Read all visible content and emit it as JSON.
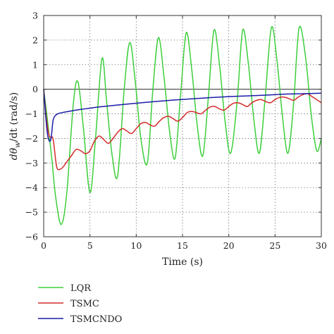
{
  "chart_data": {
    "type": "line",
    "xlabel": "Time (s)",
    "ylabel": "dθ",
    "ylabel_sub": "w",
    "ylabel_suffix": "/dt (rad/s)",
    "xlim": [
      0,
      30
    ],
    "ylim": [
      -6,
      3
    ],
    "xticks": [
      "0",
      "5",
      "10",
      "15",
      "20",
      "25",
      "30"
    ],
    "yticks": [
      "3",
      "2",
      "1",
      "0",
      "−1",
      "−2",
      "−3",
      "−4",
      "−5",
      "−6"
    ],
    "grid": true,
    "legend_position": "below",
    "series": [
      {
        "name": "LQR",
        "color": "#3ccf3c",
        "x": [
          0,
          0.3,
          0.6,
          0.9,
          1.3,
          1.9,
          2.5,
          3.2,
          3.7,
          4.3,
          5.0,
          5.6,
          6.3,
          6.8,
          7.4,
          8.0,
          8.7,
          9.3,
          9.9,
          10.5,
          11.2,
          11.8,
          12.4,
          13.0,
          13.6,
          14.2,
          14.8,
          15.4,
          16.0,
          16.6,
          17.2,
          17.8,
          18.4,
          19.0,
          19.6,
          20.2,
          20.9,
          21.5,
          22.1,
          22.7,
          23.3,
          23.9,
          24.6,
          25.2,
          25.8,
          26.4,
          27.0,
          27.6,
          28.3,
          28.9,
          29.5,
          30.0
        ],
        "y": [
          0,
          -0.9,
          -1.9,
          -2.9,
          -4.4,
          -5.5,
          -4.2,
          -0.6,
          0.3,
          -1.6,
          -4.2,
          -2.0,
          1.25,
          -0.5,
          -2.7,
          -3.5,
          0.0,
          1.9,
          0.3,
          -2.0,
          -3.0,
          0.0,
          2.1,
          0.5,
          -1.7,
          -2.8,
          -0.2,
          2.3,
          0.8,
          -1.5,
          -2.7,
          -0.3,
          2.4,
          1.0,
          -1.3,
          -2.6,
          -0.5,
          2.4,
          1.1,
          -1.2,
          -2.6,
          -0.5,
          2.5,
          1.2,
          -1.1,
          -2.6,
          -0.6,
          2.5,
          1.3,
          -1.0,
          -2.5,
          -2.0
        ]
      },
      {
        "name": "TSMC",
        "color": "#d42b2b",
        "x": [
          0,
          0.3,
          0.6,
          1.0,
          1.3,
          1.5,
          2.0,
          2.5,
          3.0,
          3.5,
          4.0,
          4.5,
          5.0,
          5.5,
          6.0,
          6.5,
          7.0,
          7.5,
          8.0,
          8.5,
          9.0,
          9.5,
          10.0,
          10.5,
          11.0,
          11.5,
          12.0,
          12.5,
          13.0,
          13.5,
          14.0,
          14.5,
          15.0,
          15.5,
          16.0,
          16.5,
          17.0,
          17.5,
          18.0,
          18.5,
          19.0,
          19.5,
          20.0,
          20.5,
          21.0,
          21.5,
          22.0,
          22.5,
          23.0,
          23.5,
          24.0,
          24.5,
          25.0,
          25.5,
          26.0,
          26.5,
          27.0,
          27.5,
          28.0,
          28.5,
          29.0,
          29.5,
          30.0
        ],
        "y": [
          0,
          -1.2,
          -1.9,
          -2.0,
          -2.9,
          -3.25,
          -3.2,
          -2.95,
          -2.7,
          -2.45,
          -2.5,
          -2.62,
          -2.5,
          -2.1,
          -1.9,
          -2.05,
          -2.2,
          -2.0,
          -1.75,
          -1.6,
          -1.7,
          -1.8,
          -1.6,
          -1.4,
          -1.35,
          -1.45,
          -1.5,
          -1.3,
          -1.15,
          -1.1,
          -1.2,
          -1.3,
          -1.15,
          -0.95,
          -0.9,
          -0.95,
          -1.0,
          -0.85,
          -0.72,
          -0.7,
          -0.8,
          -0.85,
          -0.7,
          -0.57,
          -0.55,
          -0.62,
          -0.7,
          -0.55,
          -0.45,
          -0.42,
          -0.5,
          -0.55,
          -0.42,
          -0.33,
          -0.32,
          -0.38,
          -0.45,
          -0.32,
          -0.22,
          -0.18,
          -0.3,
          -0.42,
          -0.55
        ]
      },
      {
        "name": "TSMCNDO",
        "color": "#1c1ca8",
        "x": [
          0,
          0.2,
          0.4,
          0.6,
          0.8,
          1.0,
          1.2,
          1.5,
          2.0,
          3.0,
          4.0,
          5.0,
          6.0,
          8.0,
          10.0,
          12.0,
          14.0,
          16.0,
          18.0,
          20.0,
          22.0,
          24.0,
          26.0,
          28.0,
          30.0
        ],
        "y": [
          0,
          -1.0,
          -1.8,
          -2.1,
          -2.0,
          -1.3,
          -1.1,
          -1.0,
          -0.95,
          -0.88,
          -0.82,
          -0.77,
          -0.72,
          -0.64,
          -0.57,
          -0.5,
          -0.44,
          -0.39,
          -0.34,
          -0.3,
          -0.27,
          -0.24,
          -0.2,
          -0.18,
          -0.16
        ]
      }
    ]
  }
}
